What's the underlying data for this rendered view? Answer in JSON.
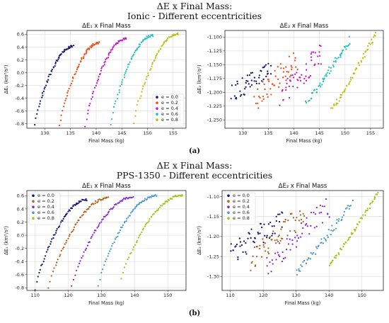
{
  "figure_a": {
    "title_line1": "ΔE x Final Mass:",
    "title_line2": "Ionic - Different eccentricities",
    "label": "(a)"
  },
  "figure_b": {
    "title_line1": "ΔE x Final Mass:",
    "title_line2": "PPS-1350 - Different eccentricities",
    "label": "(b)"
  },
  "colors": {
    "e0": "#1a1a6e",
    "e02": "#e8501a",
    "e04": "#c41ac4",
    "e06": "#26bfbf",
    "e08": "#bfbf1a",
    "e0b": "#1a1a6e",
    "e02b": "#b3661a",
    "e04b": "#8a2bcc",
    "e06b": "#4d99cc",
    "e08b": "#a6c21a"
  },
  "chart_data": [
    {
      "id": "a1",
      "type": "scatter",
      "title": "ΔE₁ x Final Mass",
      "xlabel": "Final Mass (kg)",
      "ylabel": "ΔE₁ (km²/s²)",
      "xlim": [
        126.5,
        157.5
      ],
      "ylim": [
        -0.87,
        0.66
      ],
      "xticks": [
        130,
        135,
        140,
        145,
        150,
        155
      ],
      "yticks": [
        -0.8,
        -0.6,
        -0.4,
        -0.2,
        0.0,
        0.2,
        0.4,
        0.6
      ],
      "legend": "bottom-right",
      "series": [
        {
          "name": "e = 0.0",
          "color_key": "e0",
          "shape": "sqrt",
          "x0": 128.0,
          "x1": 135.5,
          "y0": -0.76,
          "y1": 0.41,
          "n": 55
        },
        {
          "name": "e = 0.2",
          "color_key": "e02",
          "shape": "sqrt",
          "x0": 132.8,
          "x1": 140.6,
          "y0": -0.78,
          "y1": 0.47,
          "n": 55
        },
        {
          "name": "e = 0.4",
          "color_key": "e04",
          "shape": "sqrt",
          "x0": 137.8,
          "x1": 145.8,
          "y0": -0.78,
          "y1": 0.53,
          "n": 55
        },
        {
          "name": "e = 0.6",
          "color_key": "e06",
          "shape": "sqrt",
          "x0": 142.8,
          "x1": 151.0,
          "y0": -0.76,
          "y1": 0.58,
          "n": 55
        },
        {
          "name": "e = 0.8",
          "color_key": "e08",
          "shape": "sqrt",
          "x0": 147.3,
          "x1": 156.0,
          "y0": -0.72,
          "y1": 0.61,
          "n": 55
        }
      ]
    },
    {
      "id": "a2",
      "type": "scatter",
      "title": "ΔE₂ x Final Mass",
      "xlabel": "Final Mass (kg)",
      "ylabel": "ΔE₂ (km²/s²)",
      "xlim": [
        126.5,
        157.5
      ],
      "ylim": [
        -1.265,
        -1.088
      ],
      "xticks": [
        130,
        135,
        140,
        145,
        150,
        155
      ],
      "yticks": [
        -1.25,
        -1.225,
        -1.2,
        -1.175,
        -1.15,
        -1.125,
        -1.1
      ],
      "yticklabels": [
        "-1.250",
        "-1.225",
        "-1.200",
        "-1.175",
        "-1.150",
        "-1.125",
        "-1.100"
      ],
      "legend": "none",
      "series": [
        {
          "name": "e = 0.0",
          "color_key": "e0",
          "shape": "flat",
          "x0": 128.0,
          "x1": 135.5,
          "y0": -1.205,
          "y1": -1.15,
          "n": 50,
          "spread": 0.018
        },
        {
          "name": "e = 0.2",
          "color_key": "e02",
          "shape": "flat",
          "x0": 132.5,
          "x1": 140.5,
          "y0": -1.215,
          "y1": -1.14,
          "n": 50,
          "spread": 0.02
        },
        {
          "name": "e = 0.4",
          "color_key": "e04",
          "shape": "flat",
          "x0": 137.5,
          "x1": 145.5,
          "y0": -1.205,
          "y1": -1.13,
          "n": 50,
          "spread": 0.02
        },
        {
          "name": "e = 0.6",
          "color_key": "e06",
          "shape": "rise",
          "x0": 142.5,
          "x1": 151.0,
          "y0": -1.215,
          "y1": -1.105,
          "n": 55,
          "spread": 0.012
        },
        {
          "name": "e = 0.8",
          "color_key": "e08",
          "shape": "rise",
          "x0": 147.5,
          "x1": 156.0,
          "y0": -1.23,
          "y1": -1.093,
          "n": 55,
          "spread": 0.006
        }
      ]
    },
    {
      "id": "b1",
      "type": "scatter",
      "title": "ΔE₁ x Final Mass",
      "xlabel": "Final Mass (kg)",
      "ylabel": "ΔE₁ (km²/s²)",
      "xlim": [
        107.5,
        155.5
      ],
      "ylim": [
        -0.84,
        0.68
      ],
      "xticks": [
        110,
        120,
        130,
        140,
        150
      ],
      "yticks": [
        -0.8,
        -0.6,
        -0.4,
        -0.2,
        0.0,
        0.2,
        0.4,
        0.6
      ],
      "legend": "top-left",
      "series": [
        {
          "name": "e = 0.0",
          "color_key": "e0b",
          "shape": "sqrt",
          "x0": 110.0,
          "x1": 125.5,
          "y0": -0.76,
          "y1": 0.54,
          "n": 60
        },
        {
          "name": "e = 0.2",
          "color_key": "e02b",
          "shape": "sqrt",
          "x0": 114.0,
          "x1": 132.0,
          "y0": -0.74,
          "y1": 0.57,
          "n": 60
        },
        {
          "name": "e = 0.4",
          "color_key": "e04b",
          "shape": "sqrt",
          "x0": 121.0,
          "x1": 139.5,
          "y0": -0.72,
          "y1": 0.58,
          "n": 60
        },
        {
          "name": "e = 0.6",
          "color_key": "e06b",
          "shape": "sqrt",
          "x0": 129.0,
          "x1": 146.5,
          "y0": -0.7,
          "y1": 0.6,
          "n": 60
        },
        {
          "name": "e = 0.8",
          "color_key": "e08b",
          "shape": "sqrt",
          "x0": 136.0,
          "x1": 154.5,
          "y0": -0.6,
          "y1": 0.61,
          "n": 60
        }
      ]
    },
    {
      "id": "b2",
      "type": "scatter",
      "title": "ΔE₂ x Final Mass",
      "xlabel": "Final Mass (kg)",
      "ylabel": "ΔE₂ (km²/s²)",
      "xlim": [
        107.5,
        156.5
      ],
      "ylim": [
        -1.335,
        -1.085
      ],
      "xticks": [
        110,
        120,
        130,
        140,
        150
      ],
      "yticks": [
        -1.3,
        -1.25,
        -1.2,
        -1.15,
        -1.1
      ],
      "yticklabels": [
        "-1.30",
        "-1.25",
        "-1.20",
        "-1.15",
        "-1.10"
      ],
      "legend": "top-left",
      "series": [
        {
          "name": "e = 0.0",
          "color_key": "e0b",
          "shape": "flat",
          "x0": 110.0,
          "x1": 126.0,
          "y0": -1.25,
          "y1": -1.15,
          "n": 55,
          "spread": 0.03
        },
        {
          "name": "e = 0.2",
          "color_key": "e02b",
          "shape": "flat",
          "x0": 116.0,
          "x1": 132.5,
          "y0": -1.26,
          "y1": -1.14,
          "n": 55,
          "spread": 0.03
        },
        {
          "name": "e = 0.4",
          "color_key": "e04b",
          "shape": "flat",
          "x0": 121.0,
          "x1": 140.0,
          "y0": -1.27,
          "y1": -1.125,
          "n": 55,
          "spread": 0.03
        },
        {
          "name": "e = 0.6",
          "color_key": "e06b",
          "shape": "rise",
          "x0": 130.0,
          "x1": 147.0,
          "y0": -1.29,
          "y1": -1.115,
          "n": 55,
          "spread": 0.02
        },
        {
          "name": "e = 0.8",
          "color_key": "e08b",
          "shape": "rise",
          "x0": 140.0,
          "x1": 155.0,
          "y0": -1.27,
          "y1": -1.09,
          "n": 55,
          "spread": 0.008
        }
      ]
    }
  ]
}
